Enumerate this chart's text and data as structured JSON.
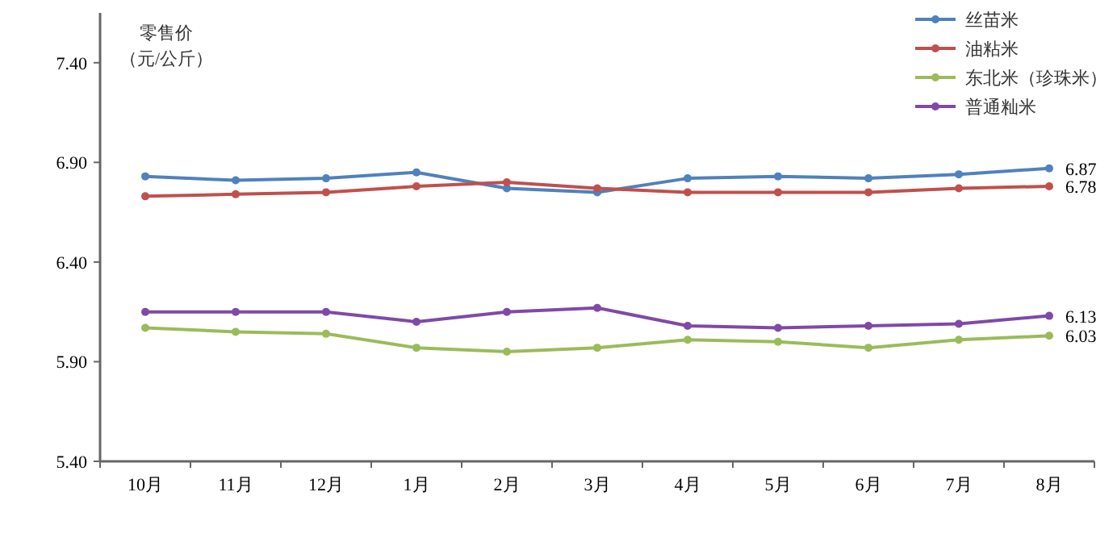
{
  "chart_data": {
    "type": "line",
    "ylabel": "零售价",
    "annotations": [
      "（元/公斤）"
    ],
    "categories": [
      "10月",
      "11月",
      "12月",
      "1月",
      "2月",
      "3月",
      "4月",
      "5月",
      "6月",
      "7月",
      "8月"
    ],
    "series": [
      {
        "name": "丝苗米",
        "color": "#4f81bd",
        "values": [
          6.83,
          6.81,
          6.82,
          6.85,
          6.77,
          6.75,
          6.82,
          6.83,
          6.82,
          6.84,
          6.87
        ],
        "value_labels": [
          null,
          null,
          null,
          null,
          null,
          null,
          null,
          null,
          null,
          null,
          "6.87"
        ]
      },
      {
        "name": "油粘米",
        "color": "#c0504d",
        "values": [
          6.73,
          6.74,
          6.75,
          6.78,
          6.8,
          6.77,
          6.75,
          6.75,
          6.75,
          6.77,
          6.78
        ],
        "value_labels": [
          null,
          null,
          null,
          null,
          null,
          null,
          null,
          null,
          null,
          null,
          "6.78"
        ]
      },
      {
        "name": "东北米（珍珠米）",
        "color": "#9bbb59",
        "values": [
          6.07,
          6.05,
          6.04,
          5.97,
          5.95,
          5.97,
          6.01,
          6.0,
          5.97,
          6.01,
          6.03
        ],
        "value_labels": [
          null,
          null,
          null,
          null,
          null,
          null,
          null,
          null,
          null,
          null,
          "6.03"
        ]
      },
      {
        "name": "普通籼米",
        "color": "#7f49a8",
        "values": [
          6.15,
          6.15,
          6.15,
          6.1,
          6.15,
          6.17,
          6.08,
          6.07,
          6.08,
          6.09,
          6.13
        ],
        "value_labels": [
          null,
          null,
          null,
          null,
          null,
          null,
          null,
          null,
          null,
          null,
          "6.13"
        ]
      }
    ],
    "ylim": [
      5.4,
      7.65
    ],
    "yticks": [
      {
        "value": 5.4,
        "label": "5.40"
      },
      {
        "value": 5.9,
        "label": "5.90"
      },
      {
        "value": 6.4,
        "label": "6.40"
      },
      {
        "value": 6.9,
        "label": "6.90"
      },
      {
        "value": 7.4,
        "label": "7.40"
      }
    ],
    "grid": false,
    "legend": "top right",
    "marker": "circle",
    "line_style": "solid"
  }
}
